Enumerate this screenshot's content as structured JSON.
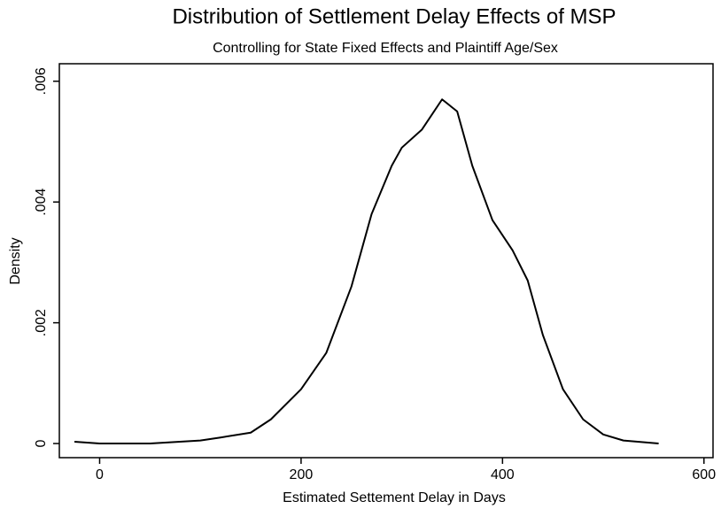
{
  "chart_data": {
    "type": "line",
    "title": "Distribution of Settlement Delay Effects of MSP",
    "subtitle": "Controlling for State Fixed Effects and Plaintiff Age/Sex",
    "x_label": "Estimated Settement Delay in Days",
    "y_label": "Density",
    "x": [
      -25,
      0,
      50,
      100,
      120,
      150,
      170,
      200,
      225,
      250,
      270,
      290,
      300,
      320,
      340,
      355,
      370,
      390,
      410,
      425,
      440,
      460,
      480,
      500,
      520,
      555
    ],
    "series": [
      {
        "name": "Density",
        "color": "#000000",
        "values": [
          3e-05,
          0.0,
          0.0,
          5e-05,
          0.0001,
          0.00018,
          0.0004,
          0.0009,
          0.0015,
          0.0026,
          0.0038,
          0.0046,
          0.0049,
          0.0052,
          0.0057,
          0.0055,
          0.0046,
          0.0037,
          0.0032,
          0.0027,
          0.0018,
          0.0009,
          0.0004,
          0.00015,
          5e-05,
          0.0
        ]
      }
    ],
    "xlim": [
      -40,
      609
    ],
    "xticks": [
      0,
      200,
      400,
      600
    ],
    "ylim": [
      -0.000234,
      0.00629
    ],
    "yticks": [
      0,
      {
        "value": 0.002,
        "label": ".002"
      },
      {
        "value": 0.004,
        "label": ".004"
      },
      {
        "value": 0.006,
        "label": ".006"
      }
    ],
    "grid": false
  }
}
